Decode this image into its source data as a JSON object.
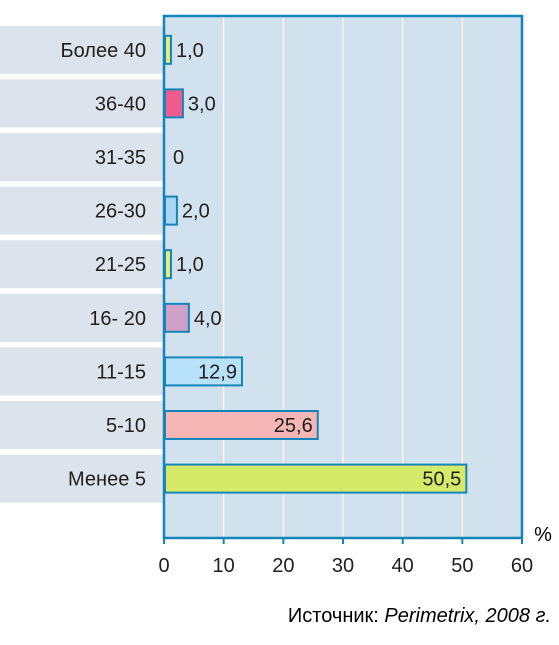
{
  "chart_data": {
    "type": "bar",
    "orientation": "horizontal",
    "categories": [
      "Более 40",
      "36-40",
      "31-35",
      "26-30",
      "21-25",
      "16- 20",
      "11-15",
      "5-10",
      "Менее 5"
    ],
    "values": [
      1.0,
      3.0,
      0,
      2.0,
      1.0,
      4.0,
      12.9,
      25.6,
      50.5
    ],
    "value_labels": [
      "1,0",
      "3,0",
      "0",
      "2,0",
      "1,0",
      "4,0",
      "12,9",
      "25,6",
      "50,5"
    ],
    "bar_colors": [
      "#e4ef7a",
      "#ef5b8d",
      "#d0e4ef",
      "#a9d6f2",
      "#e4ef7a",
      "#cfa0c8",
      "#b8e2f9",
      "#f7b6b6",
      "#d6ea6a"
    ],
    "xlim": [
      0,
      60
    ],
    "xticks": [
      0,
      10,
      20,
      30,
      40,
      50,
      60
    ],
    "unit_label": "%",
    "grid": true,
    "source_prefix": "Источник: ",
    "source_name": "Perimetrix, 2008 г.",
    "colors": {
      "plot_background": "#d1e2ee",
      "label_band": "#dde3ea",
      "frame": "#1485b8",
      "gridline": "#ffffff",
      "bar_stroke": "#1485b8",
      "text": "#1f1f1f"
    }
  }
}
